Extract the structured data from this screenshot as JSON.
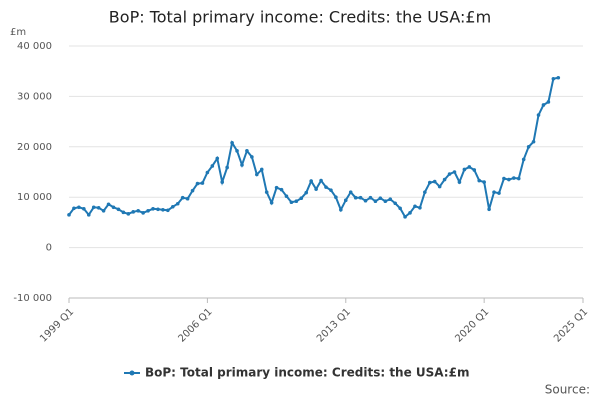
{
  "chart_data": {
    "type": "line",
    "title": "BoP: Total primary income: Credits: the USA:£m",
    "y_unit": "£m",
    "source": "Source:",
    "categories": [
      "1999 Q1",
      "1999 Q2",
      "1999 Q3",
      "1999 Q4",
      "2000 Q1",
      "2000 Q2",
      "2000 Q3",
      "2000 Q4",
      "2001 Q1",
      "2001 Q2",
      "2001 Q3",
      "2001 Q4",
      "2002 Q1",
      "2002 Q2",
      "2002 Q3",
      "2002 Q4",
      "2003 Q1",
      "2003 Q2",
      "2003 Q3",
      "2003 Q4",
      "2004 Q1",
      "2004 Q2",
      "2004 Q3",
      "2004 Q4",
      "2005 Q1",
      "2005 Q2",
      "2005 Q3",
      "2005 Q4",
      "2006 Q1",
      "2006 Q2",
      "2006 Q3",
      "2006 Q4",
      "2007 Q1",
      "2007 Q2",
      "2007 Q3",
      "2007 Q4",
      "2008 Q1",
      "2008 Q2",
      "2008 Q3",
      "2008 Q4",
      "2009 Q1",
      "2009 Q2",
      "2009 Q3",
      "2009 Q4",
      "2010 Q1",
      "2010 Q2",
      "2010 Q3",
      "2010 Q4",
      "2011 Q1",
      "2011 Q2",
      "2011 Q3",
      "2011 Q4",
      "2012 Q1",
      "2012 Q2",
      "2012 Q3",
      "2012 Q4",
      "2013 Q1",
      "2013 Q2",
      "2013 Q3",
      "2013 Q4",
      "2014 Q1",
      "2014 Q2",
      "2014 Q3",
      "2014 Q4",
      "2015 Q1",
      "2015 Q2",
      "2015 Q3",
      "2015 Q4",
      "2016 Q1",
      "2016 Q2",
      "2016 Q3",
      "2016 Q4",
      "2017 Q1",
      "2017 Q2",
      "2017 Q3",
      "2017 Q4",
      "2018 Q1",
      "2018 Q2",
      "2018 Q3",
      "2018 Q4",
      "2019 Q1",
      "2019 Q2",
      "2019 Q3",
      "2019 Q4",
      "2020 Q1",
      "2020 Q2",
      "2020 Q3",
      "2020 Q4",
      "2021 Q1",
      "2021 Q2",
      "2021 Q3",
      "2021 Q4",
      "2022 Q1",
      "2022 Q2",
      "2022 Q3",
      "2022 Q4",
      "2023 Q1",
      "2023 Q2",
      "2023 Q3",
      "2023 Q4"
    ],
    "series": [
      {
        "name": "BoP: Total primary income: Credits: the USA:£m",
        "color": "#1f78b4",
        "values": [
          6500,
          7800,
          8000,
          7700,
          6500,
          8000,
          7900,
          7300,
          8600,
          8000,
          7600,
          7000,
          6700,
          7100,
          7300,
          6900,
          7300,
          7700,
          7600,
          7500,
          7400,
          8100,
          8700,
          9900,
          9700,
          11300,
          12700,
          12800,
          14900,
          16200,
          17700,
          13000,
          15900,
          20800,
          19200,
          16400,
          19200,
          18000,
          14500,
          15500,
          11000,
          8900,
          11900,
          11500,
          10200,
          9000,
          9200,
          9800,
          10900,
          13200,
          11600,
          13300,
          12000,
          11400,
          10000,
          7500,
          9400,
          11000,
          9900,
          9900,
          9300,
          9900,
          9200,
          9800,
          9200,
          9600,
          8800,
          7800,
          6100,
          6900,
          8200,
          7900,
          11000,
          12900,
          13100,
          12100,
          13500,
          14600,
          15000,
          13000,
          15500,
          16000,
          15400,
          13300,
          13000,
          7600,
          11000,
          10800,
          13700,
          13500,
          13800,
          13700,
          17500,
          20000,
          21000,
          26300,
          28300,
          28900,
          33500,
          33700
        ]
      }
    ],
    "xlim": [
      0,
      104
    ],
    "xticks": [
      {
        "value": 0,
        "label": "1999 Q1"
      },
      {
        "value": 28,
        "label": "2006 Q1"
      },
      {
        "value": 56,
        "label": "2013 Q1"
      },
      {
        "value": 84,
        "label": "2020 Q1"
      },
      {
        "value": 104,
        "label": "2025 Q1"
      }
    ],
    "ylim": [
      -10000,
      40000
    ],
    "yticks": [
      {
        "value": -10000,
        "label": "-10 000"
      },
      0,
      {
        "value": 10000,
        "label": "10 000"
      },
      {
        "value": 20000,
        "label": "20 000"
      },
      {
        "value": 30000,
        "label": "30 000"
      },
      {
        "value": 40000,
        "label": "40 000"
      }
    ],
    "grid": true,
    "legend": "bottom"
  }
}
